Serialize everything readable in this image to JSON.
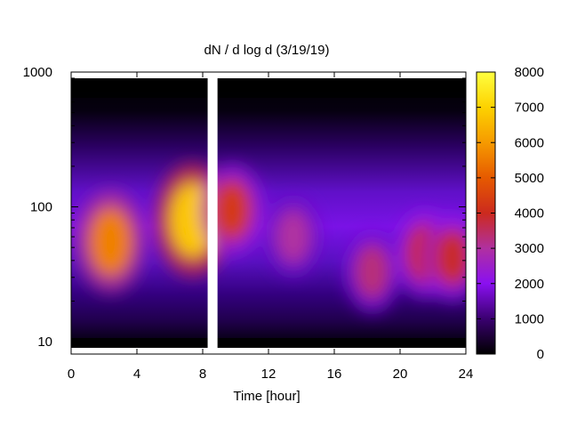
{
  "chart_data": {
    "type": "heatmap",
    "title": "dN / d log d (3/19/19)",
    "xlabel": "Time [hour]",
    "ylabel": "",
    "xlim": [
      0,
      24
    ],
    "ylim": [
      9,
      1000
    ],
    "yscale": "log",
    "x_ticks": [
      "0",
      "4",
      "8",
      "12",
      "16",
      "20",
      "24"
    ],
    "y_ticks": [
      "10",
      "100",
      "1000"
    ],
    "colorbar": {
      "range": [
        0,
        8000
      ],
      "ticks": [
        "0",
        "1000",
        "2000",
        "3000",
        "4000",
        "5000",
        "6000",
        "7000",
        "8000"
      ],
      "palette": [
        "#000000",
        "#3a0070",
        "#8a10f0",
        "#b030a0",
        "#cc2a1e",
        "#e65a00",
        "#f69a00",
        "#fdd200",
        "#ffff40"
      ]
    },
    "data_gap": {
      "x_start": 8.3,
      "x_end": 8.9
    },
    "features": [
      {
        "x": 2.4,
        "d": 55,
        "value": 5600
      },
      {
        "x": 7.4,
        "d": 80,
        "value": 6800
      },
      {
        "x": 9.8,
        "d": 95,
        "value": 4300
      },
      {
        "x": 13.5,
        "d": 60,
        "value": 3000
      },
      {
        "x": 18.3,
        "d": 33,
        "value": 3300
      },
      {
        "x": 21.5,
        "d": 45,
        "value": 4000
      },
      {
        "x": 23.2,
        "d": 42,
        "value": 3900
      }
    ],
    "grid": false,
    "legend": "none"
  }
}
